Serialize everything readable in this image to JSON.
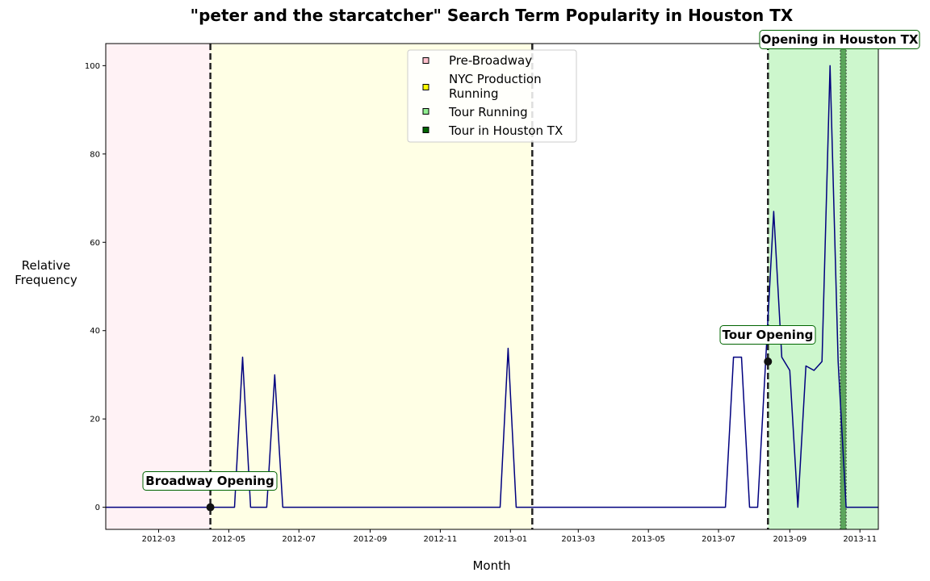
{
  "chart_data": {
    "type": "line",
    "title": "\"peter and the starcatcher\" Search Term Popularity in Houston TX",
    "xlabel": "Month",
    "ylabel": [
      "Relative",
      "Frequency"
    ],
    "xlim": [
      "2012-01-15",
      "2013-11-17"
    ],
    "ylim": [
      -5,
      105
    ],
    "x_ticks": [
      "2012-03-01",
      "2012-05-01",
      "2012-07-01",
      "2012-09-01",
      "2012-11-01",
      "2013-01-01",
      "2013-03-01",
      "2013-05-01",
      "2013-07-01",
      "2013-09-01",
      "2013-11-01"
    ],
    "x_tick_labels": [
      "2012-03",
      "2012-05",
      "2012-07",
      "2012-09",
      "2012-11",
      "2013-01",
      "2013-03",
      "2013-05",
      "2013-07",
      "2013-09",
      "2013-11"
    ],
    "y_ticks": [
      0,
      20,
      40,
      60,
      80,
      100
    ],
    "y_tick_labels": [
      "0",
      "20",
      "40",
      "60",
      "80",
      "100"
    ],
    "line_color": "#00007f",
    "series": [
      {
        "x": [
          "2012-01-15",
          "2012-01-22",
          "2012-01-29",
          "2012-02-05",
          "2012-02-12",
          "2012-02-19",
          "2012-02-26",
          "2012-03-04",
          "2012-03-11",
          "2012-03-18",
          "2012-03-25",
          "2012-04-01",
          "2012-04-08",
          "2012-04-15",
          "2012-04-22",
          "2012-04-29",
          "2012-05-06",
          "2012-05-13",
          "2012-05-20",
          "2012-05-27",
          "2012-06-03",
          "2012-06-10",
          "2012-06-17",
          "2012-06-24",
          "2012-07-01",
          "2012-07-08",
          "2012-07-15",
          "2012-07-22",
          "2012-07-29",
          "2012-08-05",
          "2012-08-12",
          "2012-08-19",
          "2012-08-26",
          "2012-09-02",
          "2012-09-09",
          "2012-09-16",
          "2012-09-23",
          "2012-09-30",
          "2012-10-07",
          "2012-10-14",
          "2012-10-21",
          "2012-10-28",
          "2012-11-04",
          "2012-11-11",
          "2012-11-18",
          "2012-11-25",
          "2012-12-02",
          "2012-12-09",
          "2012-12-16",
          "2012-12-23",
          "2012-12-30",
          "2013-01-06",
          "2013-01-13",
          "2013-01-20",
          "2013-01-27",
          "2013-02-03",
          "2013-02-10",
          "2013-02-17",
          "2013-02-24",
          "2013-03-03",
          "2013-03-10",
          "2013-03-17",
          "2013-03-24",
          "2013-03-31",
          "2013-04-07",
          "2013-04-14",
          "2013-04-21",
          "2013-04-28",
          "2013-05-05",
          "2013-05-12",
          "2013-05-19",
          "2013-05-26",
          "2013-06-02",
          "2013-06-09",
          "2013-06-16",
          "2013-06-23",
          "2013-06-30",
          "2013-07-07",
          "2013-07-14",
          "2013-07-21",
          "2013-07-28",
          "2013-08-04",
          "2013-08-11",
          "2013-08-18",
          "2013-08-25",
          "2013-09-01",
          "2013-09-08",
          "2013-09-15",
          "2013-09-22",
          "2013-09-29",
          "2013-10-06",
          "2013-10-13",
          "2013-10-20",
          "2013-10-27",
          "2013-11-03",
          "2013-11-10",
          "2013-11-17"
        ],
        "y": [
          0,
          0,
          0,
          0,
          0,
          0,
          0,
          0,
          0,
          0,
          0,
          0,
          0,
          0,
          0,
          0,
          0,
          34,
          0,
          0,
          0,
          30,
          0,
          0,
          0,
          0,
          0,
          0,
          0,
          0,
          0,
          0,
          0,
          0,
          0,
          0,
          0,
          0,
          0,
          0,
          0,
          0,
          0,
          0,
          0,
          0,
          0,
          0,
          0,
          0,
          36,
          0,
          0,
          0,
          0,
          0,
          0,
          0,
          0,
          0,
          0,
          0,
          0,
          0,
          0,
          0,
          0,
          0,
          0,
          0,
          0,
          0,
          0,
          0,
          0,
          0,
          0,
          0,
          34,
          34,
          0,
          0,
          33,
          67,
          34,
          31,
          0,
          32,
          31,
          33,
          100,
          33,
          0,
          0,
          0,
          0,
          0
        ]
      }
    ],
    "spans": [
      {
        "name": "Pre-Broadway",
        "start": "2012-01-15",
        "end": "2012-04-15",
        "color": "#ffc0cb",
        "opacity": 0.2
      },
      {
        "name": "NYC Production Running",
        "start": "2012-04-15",
        "end": "2013-01-20",
        "color": "#ffff00",
        "opacity": 0.1
      },
      {
        "name": "Tour Running",
        "start": "2013-08-13",
        "end": "2013-11-17",
        "color": "#90ee90",
        "opacity": 0.45
      },
      {
        "name": "Tour in Houston TX",
        "start": "2013-10-15",
        "end": "2013-10-20",
        "color": "#006400",
        "opacity": 0.55
      }
    ],
    "vlines": [
      "2012-04-15",
      "2013-01-20",
      "2013-08-13"
    ],
    "annotations": [
      {
        "text": "Broadway Opening",
        "date": "2012-04-15",
        "value": 0,
        "marker": true
      },
      {
        "text": "Tour Opening",
        "date": "2013-08-13",
        "value": 33,
        "marker": true
      },
      {
        "text": "Opening in Houston TX",
        "date": "2013-10-15",
        "value": null,
        "marker": false
      }
    ],
    "legend": {
      "placement": "top-center",
      "entries": [
        {
          "lines": [
            "Pre-Broadway"
          ],
          "color": "#ffc0cb"
        },
        {
          "lines": [
            "NYC Production",
            "Running"
          ],
          "color": "#ffff00"
        },
        {
          "lines": [
            "Tour Running"
          ],
          "color": "#90ee90"
        },
        {
          "lines": [
            "Tour in Houston TX"
          ],
          "color": "#006400"
        }
      ]
    },
    "grid": false
  }
}
